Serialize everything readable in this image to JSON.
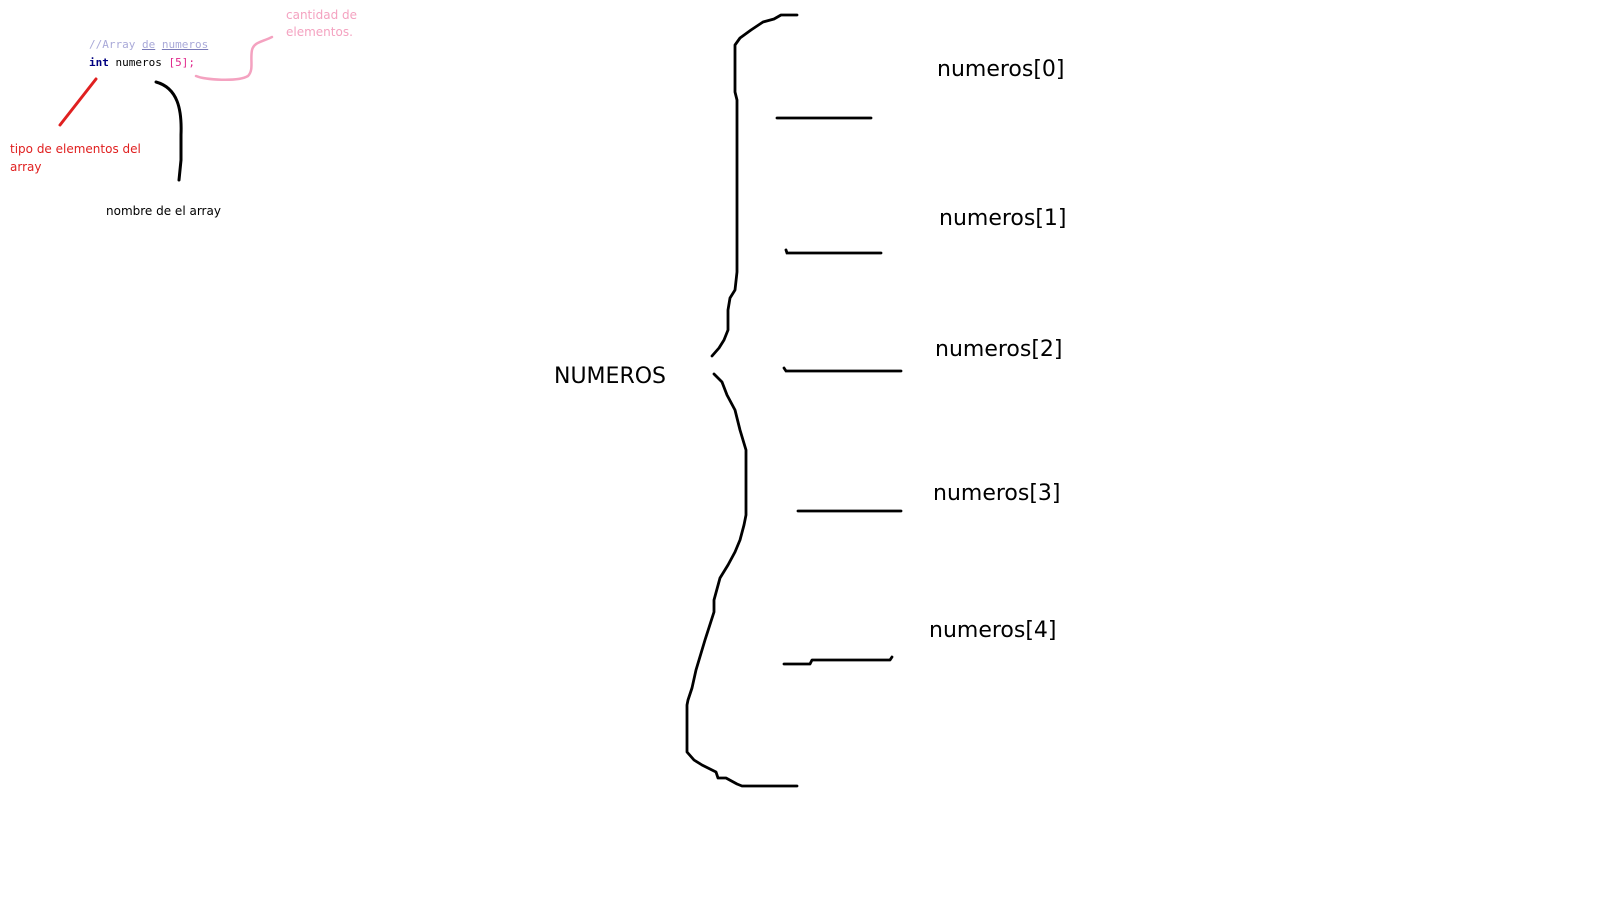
{
  "code": {
    "comment": "//Array de numeros",
    "comment_prefix": "//Array ",
    "comment_word_1": "de",
    "comment_space": " ",
    "comment_word_2": "numeros",
    "keyword": "int",
    "identifier": " numeros ",
    "size": "[5]",
    "terminator": ";"
  },
  "annotations": {
    "size_note": "cantidad de elementos.",
    "type_note": "tipo de elementos del array",
    "name_note": "nombre de el array"
  },
  "array_label": "NUMEROS",
  "elements": [
    "numeros[0]",
    "numeros[1]",
    "numeros[2]",
    "numeros[3]",
    "numeros[4]"
  ],
  "colors": {
    "size_note": "#f4a2c0",
    "type_note": "#e02020",
    "ink": "#000000",
    "keyword": "#000080",
    "bracket": "#e0288c",
    "comment": "#a9a9d8"
  }
}
